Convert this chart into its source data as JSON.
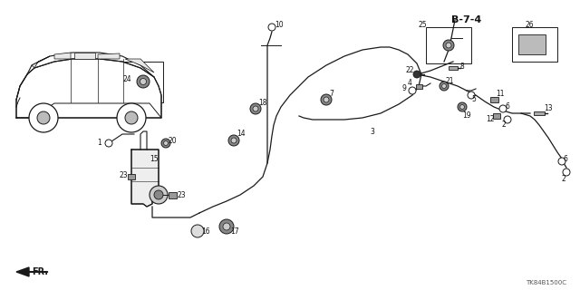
{
  "bg_color": "#ffffff",
  "line_color": "#1a1a1a",
  "text_color": "#111111",
  "diagram_id": "B-7-4",
  "part_number": "TK84B1500C",
  "fig_w": 6.4,
  "fig_h": 3.2,
  "dpi": 100
}
